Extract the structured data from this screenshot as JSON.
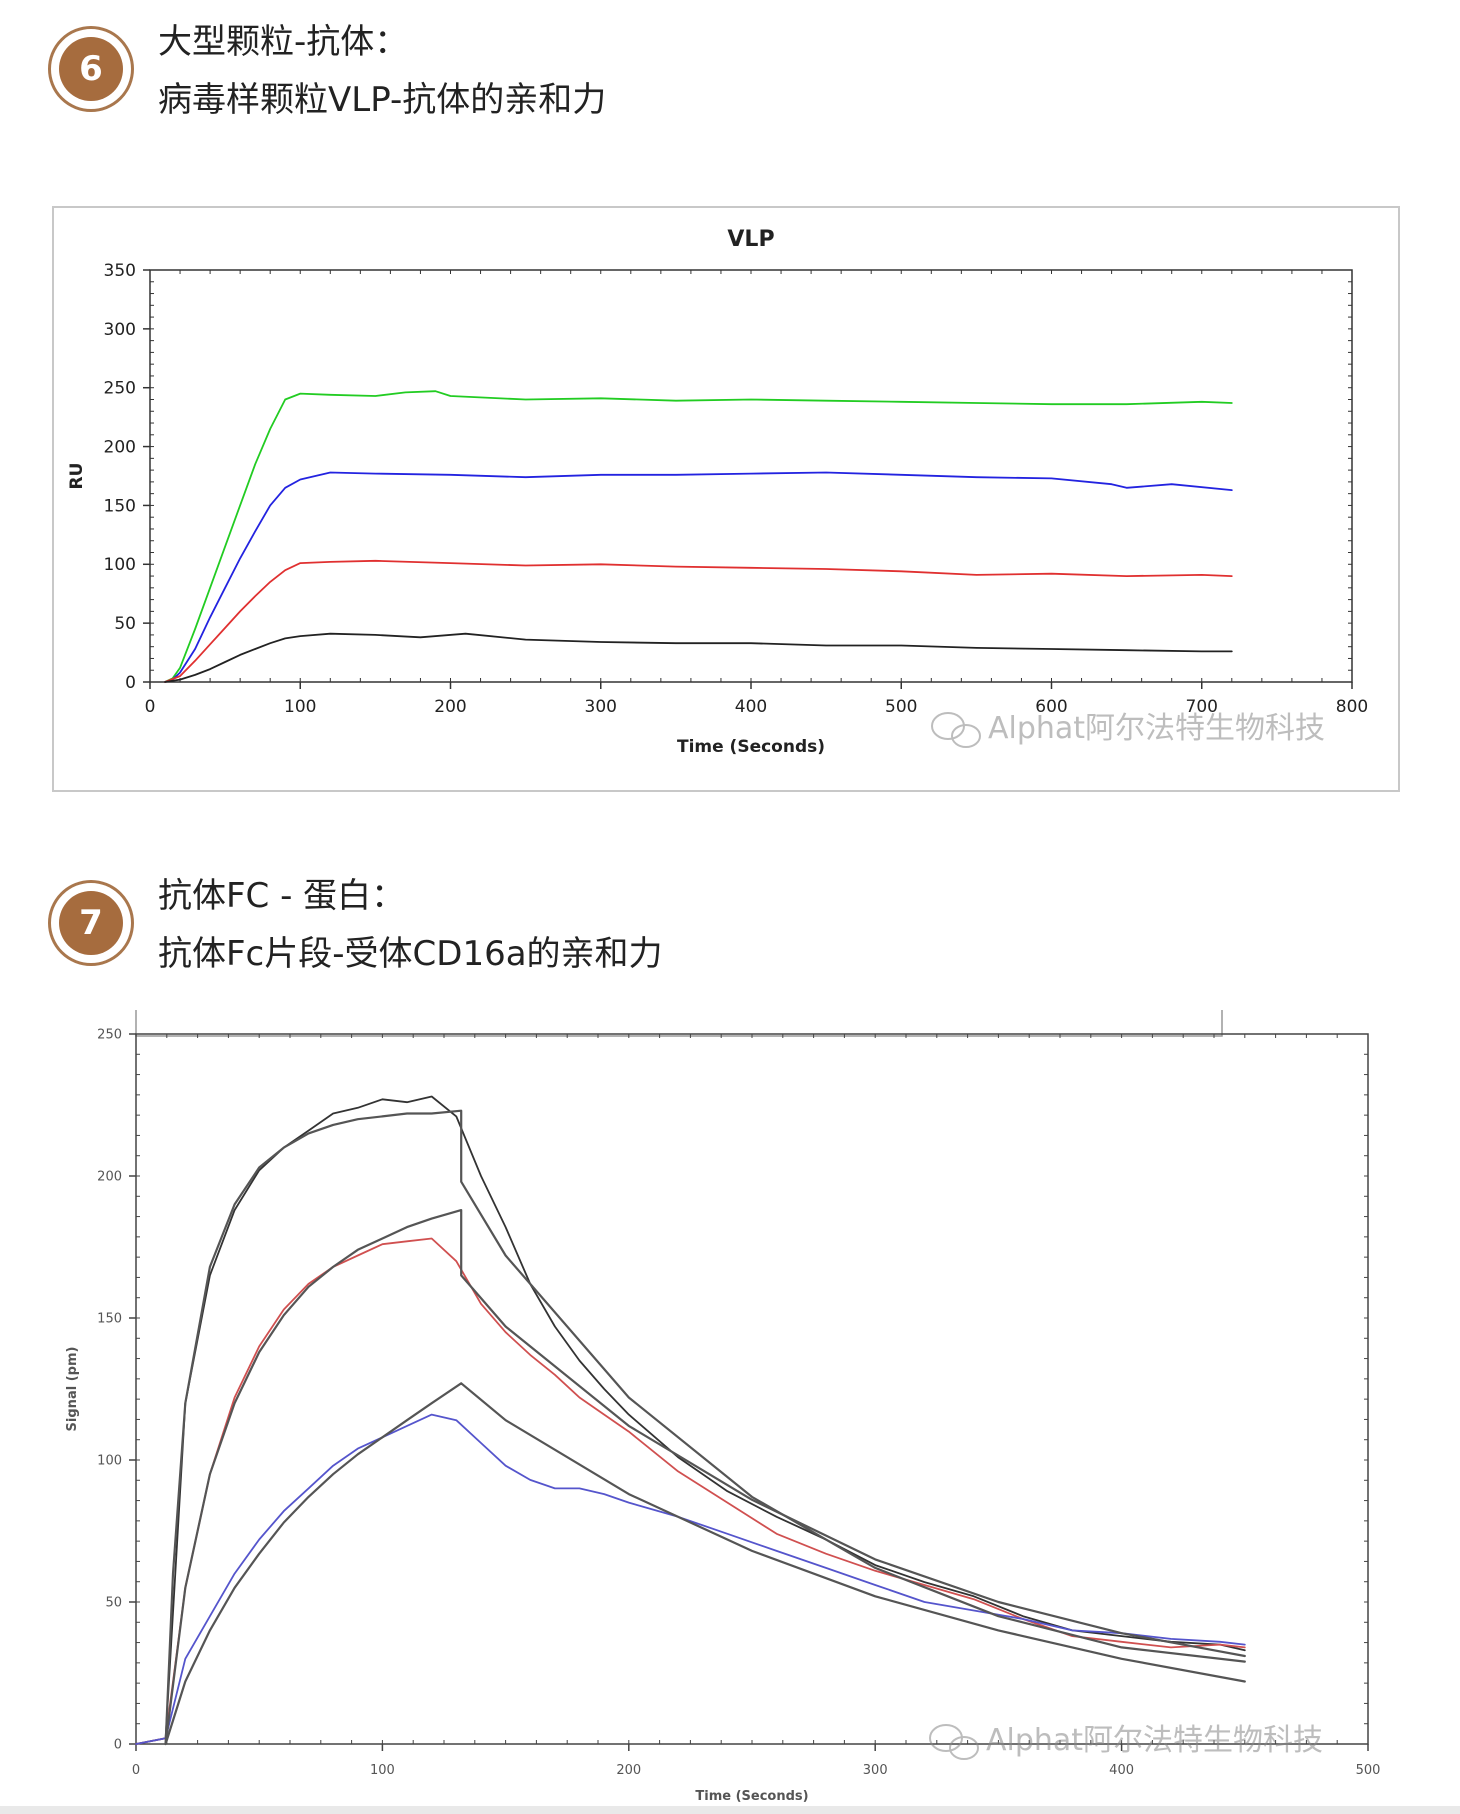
{
  "sections": [
    {
      "number": "6",
      "heading": "大型颗粒-抗体：",
      "subheading": "病毒样颗粒VLP-抗体的亲和力"
    },
    {
      "number": "7",
      "heading": "抗体FC - 蛋白：",
      "subheading": "抗体Fc片段-受体CD16a的亲和力"
    }
  ],
  "watermark": {
    "text": "Alphat阿尔法特生物科技",
    "icon": "wechat-icon"
  },
  "chart_data": [
    {
      "type": "line",
      "title": "VLP",
      "xlabel": "Time (Seconds)",
      "ylabel": "RU",
      "xlim": [
        0,
        800
      ],
      "ylim": [
        0,
        350
      ],
      "xticks": [
        0,
        100,
        200,
        300,
        400,
        500,
        600,
        700,
        800
      ],
      "yticks": [
        0,
        50,
        100,
        150,
        200,
        250,
        300,
        350
      ],
      "grid": false,
      "series": [
        {
          "color": "#22cc22",
          "x": [
            10,
            15,
            20,
            30,
            40,
            50,
            60,
            70,
            80,
            90,
            100,
            120,
            150,
            170,
            190,
            200,
            250,
            300,
            350,
            400,
            450,
            500,
            550,
            600,
            650,
            700,
            720
          ],
          "y": [
            0,
            3,
            12,
            45,
            80,
            115,
            150,
            185,
            215,
            240,
            245,
            244,
            243,
            246,
            247,
            243,
            240,
            241,
            239,
            240,
            239,
            238,
            237,
            236,
            236,
            238,
            237
          ]
        },
        {
          "color": "#2323e0",
          "x": [
            10,
            15,
            20,
            30,
            40,
            50,
            60,
            70,
            80,
            90,
            100,
            120,
            150,
            200,
            250,
            300,
            350,
            400,
            450,
            500,
            550,
            600,
            640,
            650,
            680,
            720
          ],
          "y": [
            0,
            2,
            8,
            28,
            55,
            80,
            105,
            128,
            150,
            165,
            172,
            178,
            177,
            176,
            174,
            176,
            176,
            177,
            178,
            176,
            174,
            173,
            168,
            165,
            168,
            163
          ]
        },
        {
          "color": "#e03030",
          "x": [
            10,
            20,
            30,
            40,
            50,
            60,
            70,
            80,
            90,
            100,
            120,
            150,
            200,
            250,
            300,
            350,
            400,
            450,
            500,
            550,
            600,
            650,
            700,
            720
          ],
          "y": [
            0,
            5,
            18,
            32,
            46,
            60,
            73,
            85,
            95,
            101,
            102,
            103,
            101,
            99,
            100,
            98,
            97,
            96,
            94,
            91,
            92,
            90,
            91,
            90
          ]
        },
        {
          "color": "#222222",
          "x": [
            10,
            20,
            30,
            40,
            50,
            60,
            70,
            80,
            90,
            100,
            120,
            150,
            180,
            210,
            250,
            300,
            350,
            400,
            450,
            500,
            550,
            600,
            650,
            700,
            720
          ],
          "y": [
            0,
            2,
            6,
            11,
            17,
            23,
            28,
            33,
            37,
            39,
            41,
            40,
            38,
            41,
            36,
            34,
            33,
            33,
            31,
            31,
            29,
            28,
            27,
            26,
            26
          ]
        }
      ]
    },
    {
      "type": "line",
      "title": "",
      "xlabel": "Time (Seconds)",
      "ylabel": "Signal (pm)",
      "xlim": [
        0,
        500
      ],
      "ylim": [
        0,
        250
      ],
      "xticks": [
        0,
        100,
        200,
        300,
        400,
        500
      ],
      "yticks": [
        0,
        50,
        100,
        150,
        200,
        250
      ],
      "grid": false,
      "legend_placement": "top",
      "series": [
        {
          "kind": "data",
          "color": "#333333",
          "x": [
            0,
            12,
            20,
            30,
            40,
            50,
            60,
            70,
            80,
            90,
            100,
            110,
            120,
            130,
            140,
            150,
            160,
            170,
            180,
            190,
            200,
            220,
            240,
            260,
            280,
            300,
            320,
            340,
            360,
            380,
            400,
            420,
            440,
            450
          ],
          "y": [
            0,
            2,
            120,
            165,
            188,
            202,
            210,
            216,
            222,
            224,
            227,
            226,
            228,
            221,
            200,
            182,
            162,
            147,
            135,
            125,
            116,
            101,
            89,
            80,
            72,
            63,
            57,
            52,
            45,
            40,
            38,
            36,
            35,
            33
          ]
        },
        {
          "kind": "data",
          "color": "#d05050",
          "x": [
            0,
            12,
            20,
            30,
            40,
            50,
            60,
            70,
            80,
            90,
            100,
            110,
            120,
            130,
            140,
            150,
            160,
            170,
            180,
            190,
            200,
            220,
            240,
            260,
            280,
            300,
            320,
            340,
            360,
            380,
            400,
            420,
            440,
            450
          ],
          "y": [
            0,
            2,
            55,
            95,
            122,
            140,
            153,
            162,
            168,
            172,
            176,
            177,
            178,
            170,
            155,
            145,
            137,
            130,
            122,
            116,
            110,
            96,
            85,
            74,
            67,
            61,
            56,
            51,
            44,
            38,
            36,
            34,
            35,
            34
          ]
        },
        {
          "kind": "data",
          "color": "#5555cc",
          "x": [
            0,
            12,
            20,
            30,
            40,
            50,
            60,
            70,
            80,
            90,
            100,
            110,
            120,
            130,
            140,
            150,
            160,
            170,
            180,
            190,
            200,
            220,
            240,
            260,
            280,
            300,
            320,
            340,
            360,
            380,
            400,
            420,
            440,
            450
          ],
          "y": [
            0,
            2,
            30,
            45,
            60,
            72,
            82,
            90,
            98,
            104,
            108,
            112,
            116,
            114,
            106,
            98,
            93,
            90,
            90,
            88,
            85,
            80,
            74,
            68,
            62,
            56,
            50,
            47,
            44,
            40,
            39,
            37,
            36,
            35
          ]
        },
        {
          "kind": "fit",
          "color": "#555555",
          "x": [
            12,
            15,
            20,
            30,
            40,
            50,
            60,
            70,
            80,
            90,
            100,
            110,
            120,
            132,
            132,
            150,
            200,
            250,
            300,
            350,
            400,
            450
          ],
          "y": [
            0,
            60,
            120,
            168,
            190,
            203,
            210,
            215,
            218,
            220,
            221,
            222,
            222,
            223,
            198,
            172,
            122,
            87,
            62,
            45,
            34,
            29
          ]
        },
        {
          "kind": "fit",
          "color": "#555555",
          "x": [
            12,
            20,
            30,
            40,
            50,
            60,
            70,
            80,
            90,
            100,
            110,
            120,
            132,
            132,
            150,
            200,
            250,
            300,
            350,
            400,
            450
          ],
          "y": [
            0,
            55,
            95,
            120,
            138,
            151,
            161,
            168,
            174,
            178,
            182,
            185,
            188,
            165,
            147,
            112,
            86,
            65,
            50,
            39,
            31
          ]
        },
        {
          "kind": "fit",
          "color": "#555555",
          "x": [
            12,
            20,
            30,
            40,
            50,
            60,
            70,
            80,
            90,
            100,
            110,
            120,
            132,
            150,
            200,
            250,
            300,
            350,
            400,
            450
          ],
          "y": [
            0,
            22,
            40,
            55,
            67,
            78,
            87,
            95,
            102,
            108,
            114,
            120,
            127,
            114,
            88,
            68,
            52,
            40,
            30,
            22
          ]
        }
      ]
    }
  ]
}
